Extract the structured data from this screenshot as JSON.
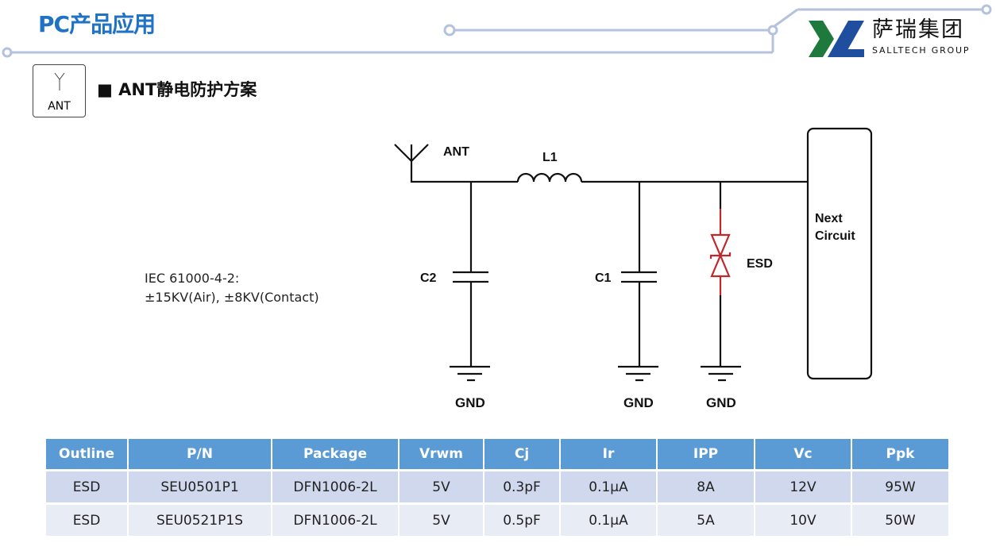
{
  "header": {
    "title": "PC产品应用",
    "logo_cn": "萨瑞集团",
    "logo_en": "SALLTECH GROUP"
  },
  "section": {
    "icon_label": "ANT",
    "title": "ANT静电防护方案"
  },
  "standard": {
    "line1": "IEC 61000-4-2:",
    "line2": "±15KV(Air), ±8KV(Contact)"
  },
  "schematic": {
    "ant": "ANT",
    "l1": "L1",
    "c1": "C1",
    "c2": "C2",
    "esd": "ESD",
    "gnd": "GND",
    "next1": "Next",
    "next2": "Circuit",
    "esd_color": "#c0282e"
  },
  "table": {
    "headers": [
      "Outline",
      "P/N",
      "Package",
      "Vrwm",
      "Cj",
      "Ir",
      "IPP",
      "Vc",
      "Ppk"
    ],
    "rows": [
      [
        "ESD",
        "SEU0501P1",
        "DFN1006-2L",
        "5V",
        "0.3pF",
        "0.1μA",
        "8A",
        "12V",
        "95W"
      ],
      [
        "ESD",
        "SEU0521P1S",
        "DFN1006-2L",
        "5V",
        "0.5pF",
        "0.1μA",
        "5A",
        "10V",
        "50W"
      ]
    ]
  },
  "colors": {
    "title": "#1f72c4",
    "table_header": "#5b9bd5",
    "deco_line": "#b4c2dc",
    "logo_green": "#1e7a3c",
    "logo_blue": "#1f4e9e"
  }
}
